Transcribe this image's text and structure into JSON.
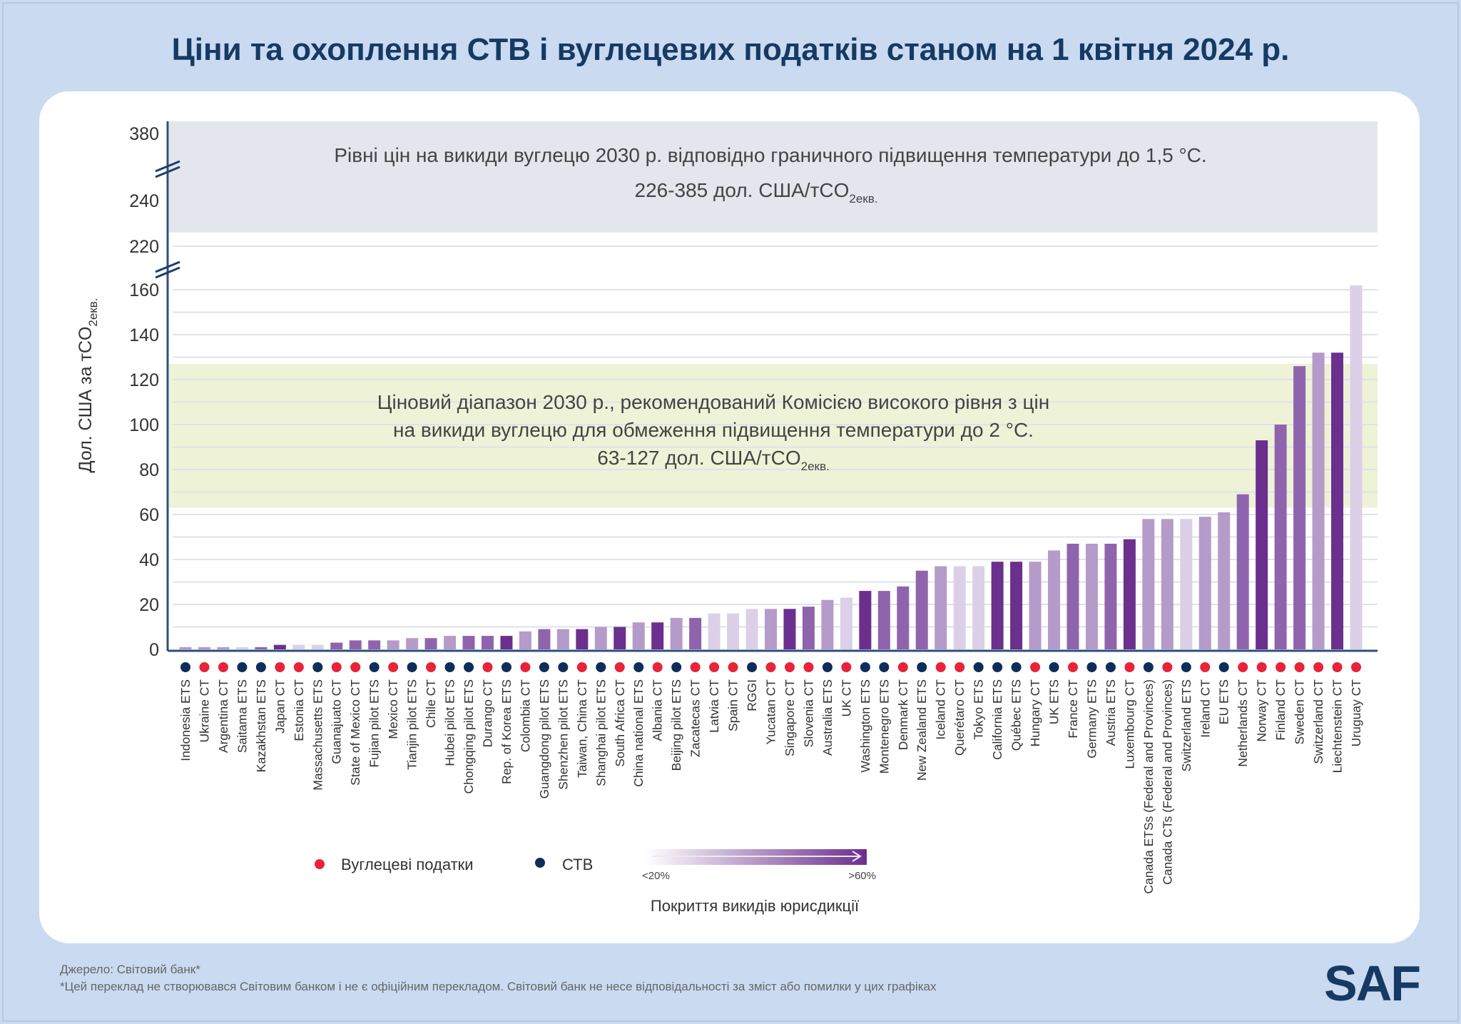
{
  "title": "Ціни та охоплення СТВ і вуглецевих податків станом на 1 квітня 2024 р.",
  "chart_data": {
    "type": "bar",
    "title": "Ціни та охоплення СТВ і вуглецевих податків станом на 1 квітня 2024 р.",
    "ylabel": "Дол. США за тCO",
    "ylabel_sub": "2екв.",
    "y_ticks": [
      "0",
      "20",
      "40",
      "60",
      "80",
      "100",
      "120",
      "140",
      "160",
      "220",
      "240",
      "380"
    ],
    "y_axis_breaks": [
      [
        160,
        220
      ],
      [
        240,
        380
      ]
    ],
    "ylim": [
      0,
      385
    ],
    "grid": true,
    "colors": {
      "carbon_tax": "#e8233a",
      "ets": "#0f2d5a",
      "coverage_1": "#dcd0e8",
      "coverage_2": "#b59bc9",
      "coverage_3": "#9064ad",
      "coverage_4": "#6b2f8e"
    },
    "bands": [
      {
        "range": [
          226,
          385
        ],
        "color": "#e3e6ec",
        "line1": "Рівні цін на викиди вуглецю 2030 р. відповідно граничного підвищення температури до 1,5 °C.",
        "line2": "226-385 дол. США/тCO",
        "line2_sub": "2екв."
      },
      {
        "range": [
          63,
          127
        ],
        "color": "#eef3d8",
        "line1": "Ціновий діапазон 2030 р., рекомендований Комісією високого рівня з цін",
        "line2": "на викиди вуглецю для обмеження підвищення температури до 2 °C.",
        "line3": "63-127 дол. США/тCO",
        "line3_sub": "2екв."
      }
    ],
    "categories": [
      "Indonesia ETS",
      "Ukraine CT",
      "Argentina CT",
      "Saitama ETS",
      "Kazakhstan ETS",
      "Japan CT",
      "Estonia CT",
      "Massachusetts ETS",
      "Guanajuato CT",
      "State of Mexico CT",
      "Fujian pilot ETS",
      "Mexico CT",
      "Tianjin pilot ETS",
      "Chile CT",
      "Hubei pilot ETS",
      "Chongqing pilot ETS",
      "Durango CT",
      "Rep. of Korea ETS",
      "Colombia CT",
      "Guangdong pilot ETS",
      "Shenzhen pilot ETS",
      "Taiwan, China CT",
      "Shanghai pilot ETS",
      "South Africa CT",
      "China national ETS",
      "Albania CT",
      "Beijing pilot ETS",
      "Zacatecas CT",
      "Latvia CT",
      "Spain CT",
      "RGGI",
      "Yucatan CT",
      "Singapore CT",
      "Slovenia CT",
      "Australia ETS",
      "UK CT",
      "Washington ETS",
      "Montenegro ETS",
      "Denmark CT",
      "New Zealand ETS",
      "Iceland CT",
      "Querétaro CT",
      "Tokyo ETS",
      "California ETS",
      "Québec ETS",
      "Hungary CT",
      "UK ETS",
      "France CT",
      "Germany ETS",
      "Austria ETS",
      "Luxembourg CT",
      "Canada ETSs (Federal and Provinces)",
      "Canada CTs (Federal and Provinces)",
      "Switzerland ETS",
      "Ireland CT",
      "EU ETS",
      "Netherlands CT",
      "Norway CT",
      "Finland CT",
      "Sweden CT",
      "Switzerland CT",
      "Liechtenstein CT",
      "Uruguay CT"
    ],
    "values": [
      1,
      1,
      1,
      1,
      1,
      2,
      2,
      2,
      3,
      4,
      4,
      4,
      5,
      5,
      6,
      6,
      6,
      6,
      8,
      9,
      9,
      9,
      10,
      10,
      12,
      12,
      14,
      14,
      16,
      16,
      18,
      18,
      18,
      19,
      22,
      23,
      26,
      26,
      28,
      35,
      37,
      37,
      37,
      39,
      39,
      39,
      44,
      47,
      47,
      47,
      49,
      58,
      58,
      58,
      59,
      61,
      69,
      93,
      100,
      126,
      132,
      132,
      166
    ],
    "instrument": [
      "ETS",
      "CT",
      "CT",
      "ETS",
      "ETS",
      "CT",
      "CT",
      "ETS",
      "CT",
      "CT",
      "ETS",
      "CT",
      "ETS",
      "CT",
      "ETS",
      "ETS",
      "CT",
      "ETS",
      "CT",
      "ETS",
      "ETS",
      "CT",
      "ETS",
      "CT",
      "ETS",
      "CT",
      "ETS",
      "CT",
      "CT",
      "CT",
      "ETS",
      "CT",
      "CT",
      "CT",
      "ETS",
      "CT",
      "ETS",
      "ETS",
      "CT",
      "ETS",
      "CT",
      "CT",
      "ETS",
      "ETS",
      "ETS",
      "CT",
      "ETS",
      "CT",
      "ETS",
      "ETS",
      "CT",
      "ETS",
      "CT",
      "ETS",
      "CT",
      "ETS",
      "CT",
      "CT",
      "CT",
      "CT",
      "CT",
      "CT",
      "CT"
    ],
    "coverage_level": [
      2,
      2,
      2,
      1,
      3,
      4,
      1,
      1,
      3,
      3,
      3,
      2,
      2,
      3,
      2,
      3,
      3,
      4,
      2,
      3,
      2,
      4,
      2,
      4,
      2,
      4,
      2,
      3,
      1,
      1,
      1,
      2,
      4,
      3,
      2,
      1,
      4,
      3,
      3,
      3,
      2,
      1,
      1,
      4,
      4,
      2,
      2,
      3,
      2,
      3,
      4,
      2,
      2,
      1,
      2,
      2,
      3,
      4,
      3,
      3,
      2,
      4,
      1
    ],
    "legend": {
      "carbon_tax": "Вуглецеві податки",
      "ets": "СТВ",
      "coverage_low": "<20%",
      "coverage_high": ">60%",
      "coverage_title": "Покриття викидів юрисдикції"
    }
  },
  "footer": {
    "source": "Джерело: Світовий банк*",
    "disclaimer": "*Цей переклад не створювався Світовим банком і не є офіційним перекладом. Світовий банк не несе відповідальності за зміст або помилки у цих графіках",
    "logo": "SAF"
  }
}
